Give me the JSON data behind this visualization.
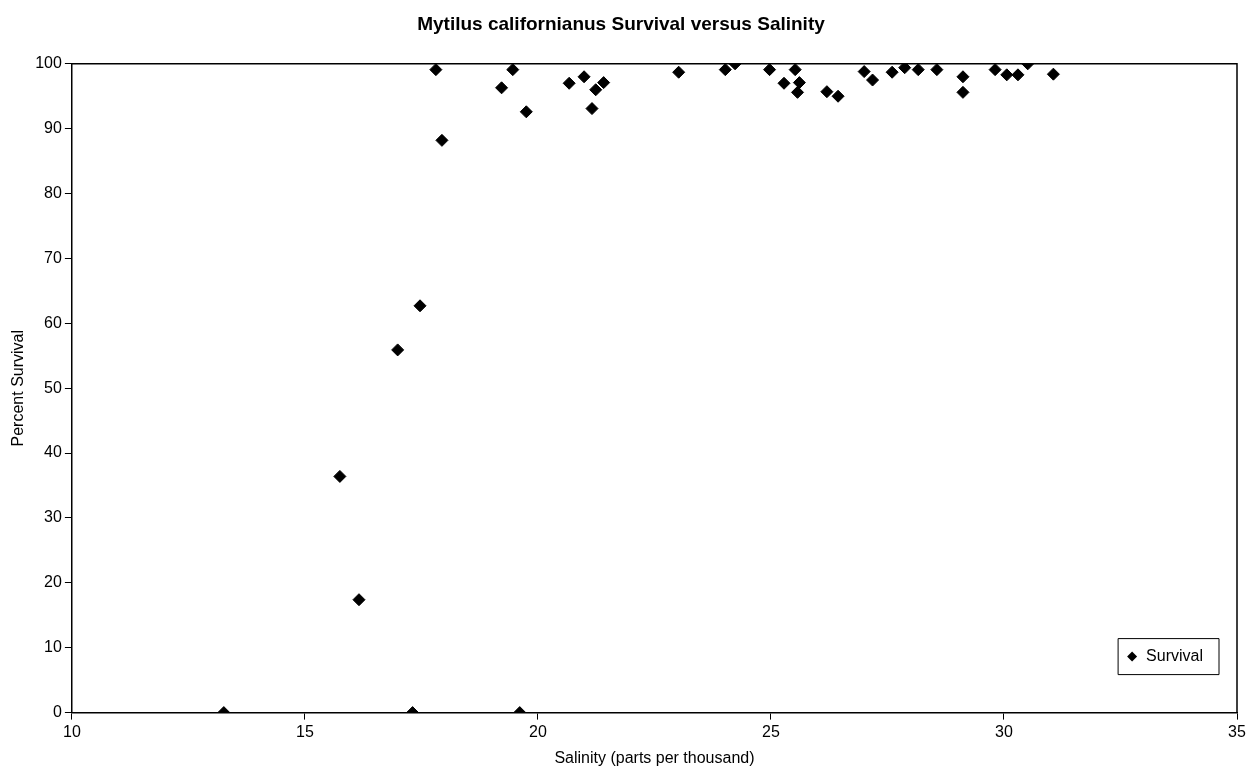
{
  "chart_data": {
    "type": "scatter",
    "title": "Mytilus californianus Survival versus Salinity",
    "xlabel": "Salinity (parts per thousand)",
    "ylabel": "Percent Survival",
    "xlim": [
      10,
      35
    ],
    "xticks": [
      10,
      15,
      20,
      25,
      30,
      35
    ],
    "ylim": [
      0,
      100
    ],
    "yticks": [
      0,
      10,
      20,
      30,
      40,
      50,
      60,
      70,
      80,
      90,
      100
    ],
    "grid": false,
    "legend": "bottom right",
    "marker": "diamond",
    "series": [
      {
        "name": "Survival",
        "color": "#000000",
        "x": [
          13.26,
          15.75,
          16.16,
          16.99,
          17.31,
          17.47,
          17.81,
          17.94,
          19.22,
          19.46,
          19.61,
          19.75,
          20.67,
          20.99,
          21.16,
          21.24,
          21.41,
          23.02,
          24.02,
          24.23,
          24.97,
          25.28,
          25.52,
          25.57,
          25.61,
          26.2,
          26.44,
          27.0,
          27.18,
          27.6,
          27.87,
          28.16,
          28.56,
          29.12,
          29.12,
          29.81,
          30.06,
          30.3,
          30.51,
          31.06
        ],
        "values": [
          0,
          36.4,
          17.4,
          55.9,
          0,
          62.7,
          99.1,
          88.2,
          96.3,
          99.1,
          0,
          92.6,
          97.0,
          98.0,
          93.1,
          96.0,
          97.1,
          98.7,
          99.1,
          100,
          99.1,
          97.0,
          99.1,
          95.6,
          97.1,
          95.7,
          95.0,
          98.8,
          97.5,
          98.7,
          99.4,
          99.1,
          99.1,
          98.0,
          95.6,
          99.1,
          98.3,
          98.3,
          100,
          98.4
        ]
      }
    ]
  }
}
